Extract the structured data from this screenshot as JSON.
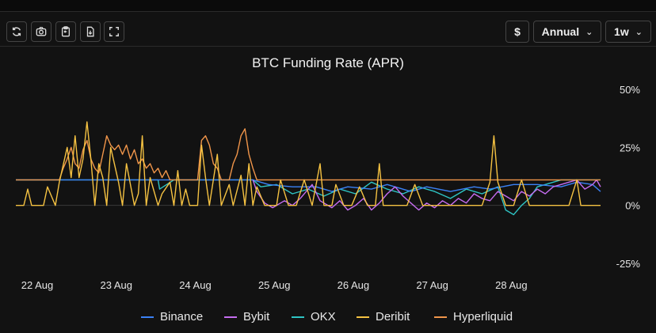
{
  "toolbar": {
    "icons": [
      "refresh-icon",
      "camera-icon",
      "clipboard-icon",
      "download-icon",
      "fullscreen-icon"
    ],
    "currency_label": "$",
    "period_label": "Annual",
    "range_label": "1w"
  },
  "colors": {
    "Binance": "#3b82f6",
    "Bybit": "#c56cf0",
    "OKX": "#2ec4c4",
    "Deribit": "#f5c242",
    "Hyperliquid": "#f0954a"
  },
  "chart_data": {
    "type": "line",
    "title": "BTC Funding Rate (APR)",
    "x_ticks": [
      "22 Aug",
      "23 Aug",
      "24 Aug",
      "25 Aug",
      "26 Aug",
      "27 Aug",
      "28 Aug"
    ],
    "y_ticks": [
      "50%",
      "25%",
      "0%",
      "-25%"
    ],
    "y_tick_values": [
      50,
      25,
      0,
      -25
    ],
    "ylim": [
      -25,
      50
    ],
    "xlim": [
      0,
      7.4
    ],
    "legend_position": "bottom",
    "grid": false,
    "series": [
      {
        "name": "Binance",
        "points": [
          [
            0,
            11
          ],
          [
            3,
            11
          ],
          [
            3.2,
            9
          ],
          [
            3.5,
            8
          ],
          [
            3.8,
            8
          ],
          [
            4,
            6
          ],
          [
            4.2,
            8
          ],
          [
            4.5,
            7
          ],
          [
            4.7,
            9
          ],
          [
            5,
            6
          ],
          [
            5.2,
            8
          ],
          [
            5.5,
            6
          ],
          [
            5.8,
            8
          ],
          [
            6,
            7
          ],
          [
            6.3,
            9
          ],
          [
            6.6,
            9
          ],
          [
            6.9,
            8
          ],
          [
            7.1,
            10
          ],
          [
            7.3,
            9
          ],
          [
            7.4,
            6
          ]
        ]
      },
      {
        "name": "Bybit",
        "points": [
          [
            3,
            11
          ],
          [
            3.05,
            6
          ],
          [
            3.15,
            1
          ],
          [
            3.25,
            -1
          ],
          [
            3.4,
            2
          ],
          [
            3.5,
            0
          ],
          [
            3.6,
            3
          ],
          [
            3.75,
            9
          ],
          [
            3.85,
            2
          ],
          [
            4,
            -1
          ],
          [
            4.1,
            2
          ],
          [
            4.2,
            -2
          ],
          [
            4.3,
            0
          ],
          [
            4.4,
            3
          ],
          [
            4.5,
            -2
          ],
          [
            4.6,
            1
          ],
          [
            4.7,
            5
          ],
          [
            4.8,
            8
          ],
          [
            4.9,
            4
          ],
          [
            5,
            1
          ],
          [
            5.1,
            -2
          ],
          [
            5.2,
            1
          ],
          [
            5.3,
            -1
          ],
          [
            5.4,
            2
          ],
          [
            5.5,
            0
          ],
          [
            5.6,
            3
          ],
          [
            5.7,
            1
          ],
          [
            5.8,
            5
          ],
          [
            5.9,
            3
          ],
          [
            6,
            2
          ],
          [
            6.1,
            6
          ],
          [
            6.2,
            4
          ],
          [
            6.3,
            2
          ],
          [
            6.4,
            6
          ],
          [
            6.5,
            4
          ],
          [
            6.6,
            7
          ],
          [
            6.7,
            5
          ],
          [
            6.8,
            8
          ],
          [
            6.9,
            9
          ],
          [
            7,
            10
          ],
          [
            7.1,
            11
          ],
          [
            7.2,
            7
          ],
          [
            7.3,
            9
          ],
          [
            7.35,
            11
          ],
          [
            7.4,
            8
          ]
        ]
      },
      {
        "name": "OKX",
        "points": [
          [
            0,
            11
          ],
          [
            1.8,
            11
          ],
          [
            1.82,
            7
          ],
          [
            2,
            11
          ],
          [
            3,
            11
          ],
          [
            3.1,
            8
          ],
          [
            3.3,
            9
          ],
          [
            3.5,
            5
          ],
          [
            3.7,
            7
          ],
          [
            3.9,
            4
          ],
          [
            4.1,
            7
          ],
          [
            4.3,
            5
          ],
          [
            4.5,
            10
          ],
          [
            4.7,
            7
          ],
          [
            4.9,
            5
          ],
          [
            5.1,
            8
          ],
          [
            5.3,
            6
          ],
          [
            5.5,
            3
          ],
          [
            5.7,
            7
          ],
          [
            5.9,
            5
          ],
          [
            6.1,
            8
          ],
          [
            6.2,
            -2
          ],
          [
            6.3,
            -4
          ],
          [
            6.4,
            0
          ],
          [
            6.5,
            3
          ],
          [
            6.6,
            8
          ],
          [
            6.7,
            9
          ],
          [
            6.9,
            11
          ],
          [
            7.4,
            11
          ]
        ]
      },
      {
        "name": "Deribit",
        "points": [
          [
            0,
            0
          ],
          [
            0.1,
            0
          ],
          [
            0.15,
            7
          ],
          [
            0.2,
            0
          ],
          [
            0.35,
            0
          ],
          [
            0.4,
            8
          ],
          [
            0.5,
            0
          ],
          [
            0.55,
            10
          ],
          [
            0.65,
            25
          ],
          [
            0.7,
            12
          ],
          [
            0.75,
            30
          ],
          [
            0.8,
            12
          ],
          [
            0.85,
            20
          ],
          [
            0.9,
            36
          ],
          [
            0.95,
            20
          ],
          [
            1.0,
            0
          ],
          [
            1.05,
            18
          ],
          [
            1.1,
            12
          ],
          [
            1.15,
            0
          ],
          [
            1.2,
            25
          ],
          [
            1.3,
            10
          ],
          [
            1.35,
            0
          ],
          [
            1.4,
            18
          ],
          [
            1.5,
            0
          ],
          [
            1.55,
            5
          ],
          [
            1.6,
            30
          ],
          [
            1.65,
            0
          ],
          [
            1.7,
            12
          ],
          [
            1.8,
            0
          ],
          [
            1.85,
            5
          ],
          [
            1.95,
            10
          ],
          [
            2.0,
            0
          ],
          [
            2.05,
            15
          ],
          [
            2.1,
            0
          ],
          [
            2.15,
            7
          ],
          [
            2.2,
            0
          ],
          [
            2.3,
            0
          ],
          [
            2.35,
            26
          ],
          [
            2.4,
            12
          ],
          [
            2.45,
            0
          ],
          [
            2.55,
            22
          ],
          [
            2.6,
            0
          ],
          [
            2.7,
            9
          ],
          [
            2.75,
            0
          ],
          [
            2.85,
            13
          ],
          [
            2.9,
            0
          ],
          [
            2.95,
            18
          ],
          [
            3.0,
            0
          ],
          [
            3.05,
            8
          ],
          [
            3.15,
            0
          ],
          [
            3.3,
            0
          ],
          [
            3.35,
            11
          ],
          [
            3.45,
            0
          ],
          [
            3.55,
            0
          ],
          [
            3.65,
            11
          ],
          [
            3.75,
            0
          ],
          [
            3.85,
            18
          ],
          [
            3.9,
            0
          ],
          [
            4.0,
            0
          ],
          [
            4.05,
            9
          ],
          [
            4.15,
            0
          ],
          [
            4.25,
            0
          ],
          [
            4.35,
            8
          ],
          [
            4.45,
            0
          ],
          [
            4.55,
            0
          ],
          [
            4.6,
            18
          ],
          [
            4.65,
            0
          ],
          [
            4.75,
            0
          ],
          [
            4.8,
            0
          ],
          [
            4.95,
            0
          ],
          [
            5.05,
            9
          ],
          [
            5.15,
            0
          ],
          [
            5.3,
            0
          ],
          [
            5.5,
            0
          ],
          [
            5.6,
            0
          ],
          [
            5.7,
            0
          ],
          [
            5.9,
            0
          ],
          [
            6.0,
            10
          ],
          [
            6.05,
            30
          ],
          [
            6.1,
            10
          ],
          [
            6.2,
            0
          ],
          [
            6.3,
            0
          ],
          [
            6.4,
            11
          ],
          [
            6.5,
            0
          ],
          [
            6.6,
            0
          ],
          [
            6.7,
            0
          ],
          [
            6.85,
            0
          ],
          [
            7.0,
            0
          ],
          [
            7.1,
            11
          ],
          [
            7.15,
            0
          ],
          [
            7.3,
            0
          ],
          [
            7.4,
            0
          ]
        ]
      },
      {
        "name": "Hyperliquid",
        "points": [
          [
            0,
            11
          ],
          [
            0.55,
            11
          ],
          [
            0.6,
            16
          ],
          [
            0.65,
            20
          ],
          [
            0.7,
            25
          ],
          [
            0.75,
            18
          ],
          [
            0.8,
            16
          ],
          [
            0.85,
            24
          ],
          [
            0.9,
            28
          ],
          [
            0.95,
            20
          ],
          [
            1.0,
            16
          ],
          [
            1.05,
            14
          ],
          [
            1.1,
            22
          ],
          [
            1.15,
            30
          ],
          [
            1.2,
            26
          ],
          [
            1.25,
            24
          ],
          [
            1.3,
            26
          ],
          [
            1.35,
            22
          ],
          [
            1.4,
            26
          ],
          [
            1.45,
            20
          ],
          [
            1.5,
            24
          ],
          [
            1.55,
            18
          ],
          [
            1.6,
            20
          ],
          [
            1.65,
            16
          ],
          [
            1.7,
            18
          ],
          [
            1.75,
            14
          ],
          [
            1.8,
            16
          ],
          [
            1.85,
            12
          ],
          [
            1.9,
            15
          ],
          [
            1.95,
            11
          ],
          [
            2.0,
            11
          ],
          [
            2.3,
            11
          ],
          [
            2.35,
            28
          ],
          [
            2.4,
            30
          ],
          [
            2.45,
            26
          ],
          [
            2.5,
            18
          ],
          [
            2.55,
            16
          ],
          [
            2.6,
            11
          ],
          [
            2.7,
            11
          ],
          [
            2.75,
            18
          ],
          [
            2.8,
            22
          ],
          [
            2.85,
            30
          ],
          [
            2.9,
            33
          ],
          [
            2.95,
            22
          ],
          [
            3.0,
            16
          ],
          [
            3.05,
            11
          ],
          [
            7.4,
            11
          ]
        ]
      }
    ]
  }
}
